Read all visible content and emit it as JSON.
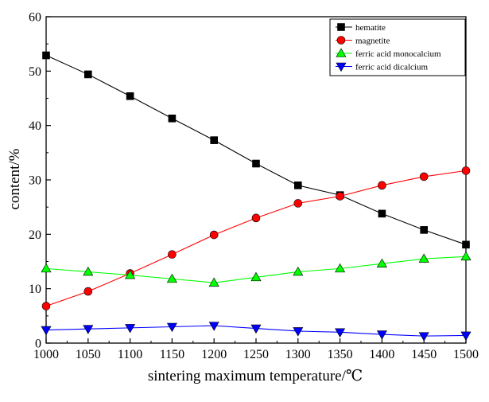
{
  "chart_data": {
    "type": "line",
    "title": "",
    "xlabel": "sintering maximum temperature/℃",
    "ylabel": "content/%",
    "x": [
      1000,
      1050,
      1100,
      1150,
      1200,
      1250,
      1300,
      1350,
      1400,
      1450,
      1500
    ],
    "xlim": [
      1000,
      1500
    ],
    "ylim": [
      0,
      60
    ],
    "xticks": [
      "1000",
      "1050",
      "1100",
      "1150",
      "1200",
      "1250",
      "1300",
      "1350",
      "1400",
      "1450",
      "1500"
    ],
    "yticks": [
      "0",
      "10",
      "20",
      "30",
      "40",
      "50",
      "60"
    ],
    "grid": false,
    "legend_position": "top-right",
    "series": [
      {
        "name": "hematite",
        "color": "#000000",
        "marker": "square",
        "values": [
          52.9,
          49.4,
          45.4,
          41.3,
          37.3,
          33.0,
          29.0,
          27.2,
          23.8,
          20.8,
          18.1
        ]
      },
      {
        "name": "magnetite",
        "color": "#ff0000",
        "marker": "circle",
        "values": [
          6.8,
          9.5,
          12.8,
          16.3,
          19.9,
          23.0,
          25.7,
          27.0,
          29.0,
          30.6,
          31.7
        ]
      },
      {
        "name": "ferric acid monocalcium",
        "color": "#00ff00",
        "marker": "triangle-up",
        "values": [
          13.7,
          13.1,
          12.5,
          11.8,
          11.1,
          12.1,
          13.1,
          13.7,
          14.6,
          15.5,
          15.9
        ]
      },
      {
        "name": "ferric acid dicalcium",
        "color": "#0000ff",
        "marker": "triangle-down",
        "values": [
          2.4,
          2.6,
          2.8,
          3.0,
          3.2,
          2.7,
          2.2,
          2.0,
          1.6,
          1.3,
          1.4
        ]
      }
    ]
  }
}
